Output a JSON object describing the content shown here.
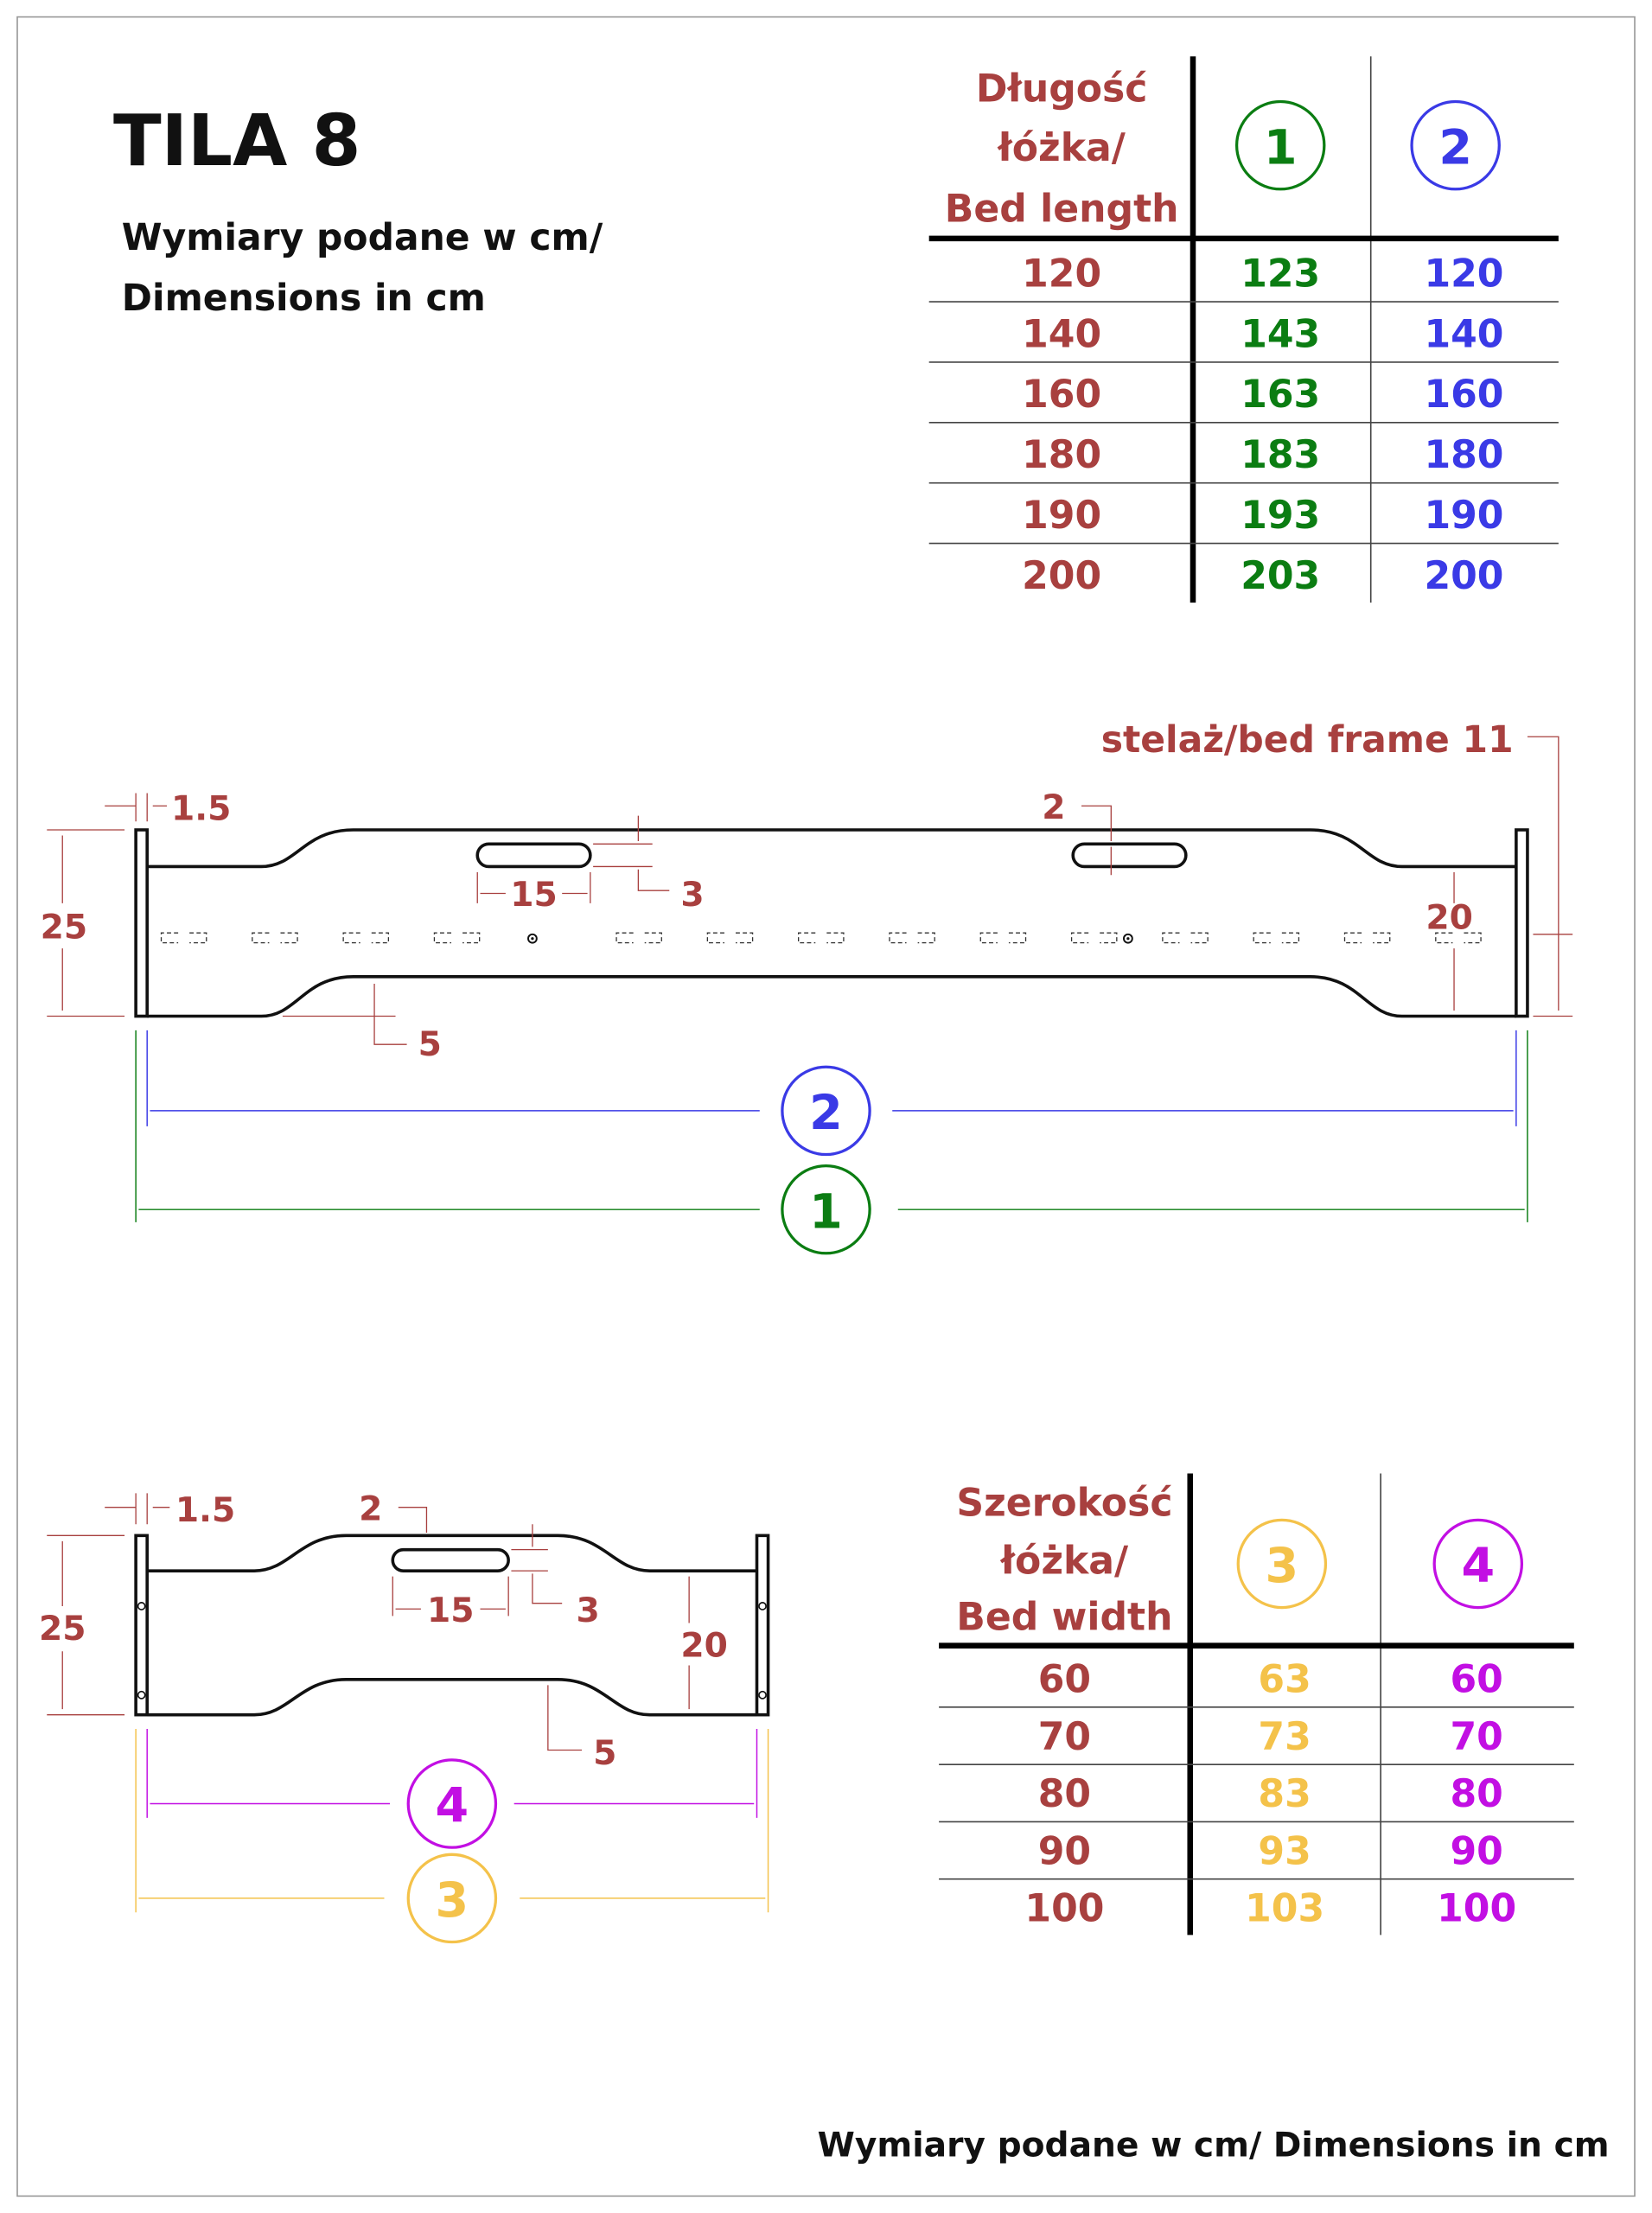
{
  "title": "TILA 8",
  "subtitle_line1": "Wymiary podane w cm/",
  "subtitle_line2": "Dimensions in cm",
  "footer": "Wymiary podane w cm/ Dimensions in cm",
  "colors": {
    "label": "#a8403f",
    "col1": "#0b7d12",
    "col2": "#3a3ae6",
    "col3": "#f4c24a",
    "col4": "#c20fe3"
  },
  "length_table": {
    "header": [
      "Długość",
      "łóżka/",
      "Bed length"
    ],
    "col_markers": [
      "1",
      "2"
    ],
    "rows": [
      [
        "120",
        "123",
        "120"
      ],
      [
        "140",
        "143",
        "140"
      ],
      [
        "160",
        "163",
        "160"
      ],
      [
        "180",
        "183",
        "180"
      ],
      [
        "190",
        "193",
        "190"
      ],
      [
        "200",
        "203",
        "200"
      ]
    ]
  },
  "width_table": {
    "header": [
      "Szerokość",
      "łóżka/",
      "Bed width"
    ],
    "col_markers": [
      "3",
      "4"
    ],
    "rows": [
      [
        "60",
        "63",
        "60"
      ],
      [
        "70",
        "73",
        "70"
      ],
      [
        "80",
        "83",
        "80"
      ],
      [
        "90",
        "93",
        "90"
      ],
      [
        "100",
        "103",
        "100"
      ]
    ]
  },
  "side_drawing": {
    "post_thickness": "1.5",
    "height": "25",
    "slot_length": "15",
    "slot_height": "3",
    "slot_offset": "2",
    "bottom_depth": "5",
    "inner_height": "20",
    "frame_label": "stelaż/bed frame 11",
    "marker_inner": "2",
    "marker_outer": "1"
  },
  "end_drawing": {
    "post_thickness": "1.5",
    "height": "25",
    "slot_offset": "2",
    "slot_length": "15",
    "slot_height": "3",
    "inner_height": "20",
    "bottom_depth": "5",
    "marker_inner": "4",
    "marker_outer": "3"
  }
}
